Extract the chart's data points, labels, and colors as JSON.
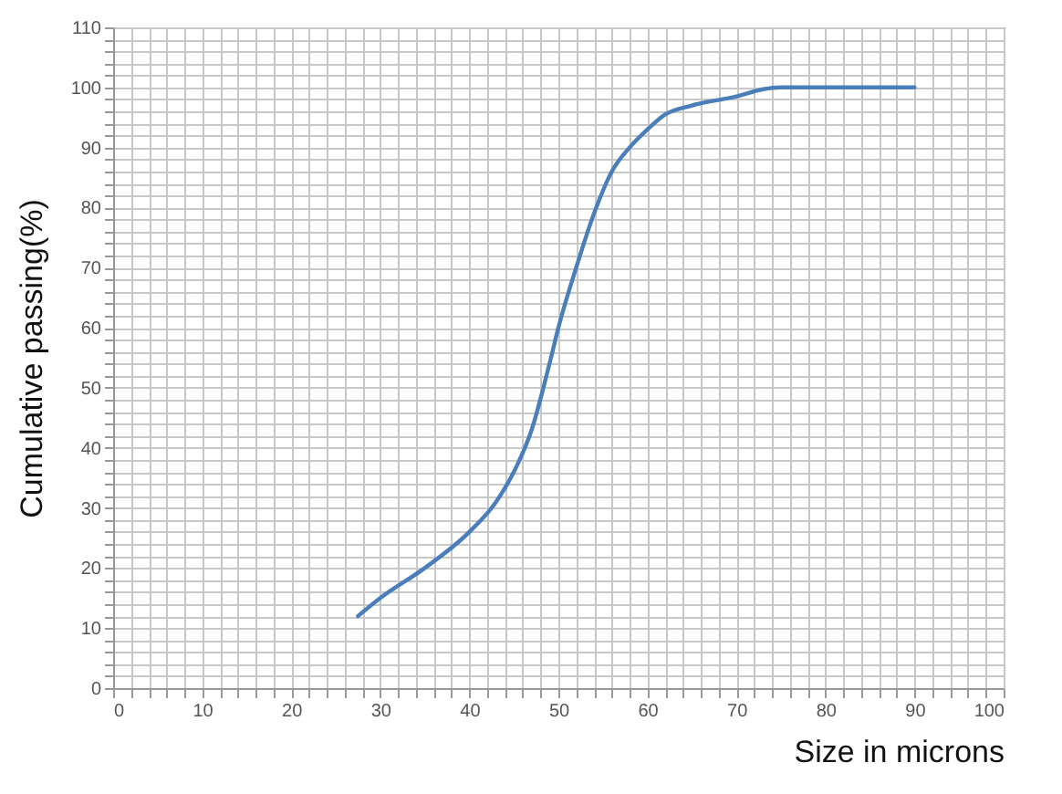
{
  "chart_data": {
    "type": "line",
    "xlabel": "Size in microns",
    "ylabel": "Cumulative passing(%)",
    "x": [
      27.5,
      30,
      35,
      40,
      43,
      45,
      47,
      49,
      50,
      52,
      54,
      56,
      58,
      60,
      62,
      65,
      70,
      73,
      75,
      80,
      90
    ],
    "series": [
      {
        "color": "#4a7ebb",
        "values": [
          12,
          15,
          20,
          26,
          31,
          36,
          43,
          54,
          60,
          70,
          79,
          86,
          90,
          93,
          95.5,
          97,
          98.5,
          99.7,
          100,
          100,
          100
        ]
      }
    ],
    "xlim": [
      0,
      100
    ],
    "ylim": [
      0,
      110
    ],
    "xticks": [
      0,
      {
        "value": 2,
        "label": null
      },
      {
        "value": 4,
        "label": null
      },
      {
        "value": 6,
        "label": null
      },
      {
        "value": 8,
        "label": null
      },
      10,
      {
        "value": 12,
        "label": null
      },
      {
        "value": 14,
        "label": null
      },
      {
        "value": 16,
        "label": null
      },
      {
        "value": 18,
        "label": null
      },
      20,
      {
        "value": 22,
        "label": null
      },
      {
        "value": 24,
        "label": null
      },
      {
        "value": 26,
        "label": null
      },
      {
        "value": 28,
        "label": null
      },
      30,
      {
        "value": 32,
        "label": null
      },
      {
        "value": 34,
        "label": null
      },
      {
        "value": 36,
        "label": null
      },
      {
        "value": 38,
        "label": null
      },
      40,
      {
        "value": 42,
        "label": null
      },
      {
        "value": 44,
        "label": null
      },
      {
        "value": 46,
        "label": null
      },
      {
        "value": 48,
        "label": null
      },
      50,
      {
        "value": 52,
        "label": null
      },
      {
        "value": 54,
        "label": null
      },
      {
        "value": 56,
        "label": null
      },
      {
        "value": 58,
        "label": null
      },
      60,
      {
        "value": 62,
        "label": null
      },
      {
        "value": 64,
        "label": null
      },
      {
        "value": 66,
        "label": null
      },
      {
        "value": 68,
        "label": null
      },
      70,
      {
        "value": 72,
        "label": null
      },
      {
        "value": 74,
        "label": null
      },
      {
        "value": 76,
        "label": null
      },
      {
        "value": 78,
        "label": null
      },
      80,
      {
        "value": 82,
        "label": null
      },
      {
        "value": 84,
        "label": null
      },
      {
        "value": 86,
        "label": null
      },
      {
        "value": 88,
        "label": null
      },
      90,
      {
        "value": 92,
        "label": null
      },
      {
        "value": 94,
        "label": null
      },
      {
        "value": 96,
        "label": null
      },
      {
        "value": 98,
        "label": null
      },
      100
    ],
    "yticks": [
      0,
      {
        "value": 2,
        "label": null
      },
      {
        "value": 4,
        "label": null
      },
      {
        "value": 6,
        "label": null
      },
      {
        "value": 8,
        "label": null
      },
      10,
      {
        "value": 12,
        "label": null
      },
      {
        "value": 14,
        "label": null
      },
      {
        "value": 16,
        "label": null
      },
      {
        "value": 18,
        "label": null
      },
      20,
      {
        "value": 22,
        "label": null
      },
      {
        "value": 24,
        "label": null
      },
      {
        "value": 26,
        "label": null
      },
      {
        "value": 28,
        "label": null
      },
      30,
      {
        "value": 32,
        "label": null
      },
      {
        "value": 34,
        "label": null
      },
      {
        "value": 36,
        "label": null
      },
      {
        "value": 38,
        "label": null
      },
      40,
      {
        "value": 42,
        "label": null
      },
      {
        "value": 44,
        "label": null
      },
      {
        "value": 46,
        "label": null
      },
      {
        "value": 48,
        "label": null
      },
      50,
      {
        "value": 52,
        "label": null
      },
      {
        "value": 54,
        "label": null
      },
      {
        "value": 56,
        "label": null
      },
      {
        "value": 58,
        "label": null
      },
      60,
      {
        "value": 62,
        "label": null
      },
      {
        "value": 64,
        "label": null
      },
      {
        "value": 66,
        "label": null
      },
      {
        "value": 68,
        "label": null
      },
      70,
      {
        "value": 72,
        "label": null
      },
      {
        "value": 74,
        "label": null
      },
      {
        "value": 76,
        "label": null
      },
      {
        "value": 78,
        "label": null
      },
      80,
      {
        "value": 82,
        "label": null
      },
      {
        "value": 84,
        "label": null
      },
      {
        "value": 86,
        "label": null
      },
      {
        "value": 88,
        "label": null
      },
      90,
      {
        "value": 92,
        "label": null
      },
      {
        "value": 94,
        "label": null
      },
      {
        "value": 96,
        "label": null
      },
      {
        "value": 98,
        "label": null
      },
      100,
      {
        "value": 102,
        "label": null
      },
      {
        "value": 104,
        "label": null
      },
      {
        "value": 106,
        "label": null
      },
      {
        "value": 108,
        "label": null
      },
      110
    ],
    "grid": true,
    "marker": "none",
    "line_style": "solid"
  }
}
